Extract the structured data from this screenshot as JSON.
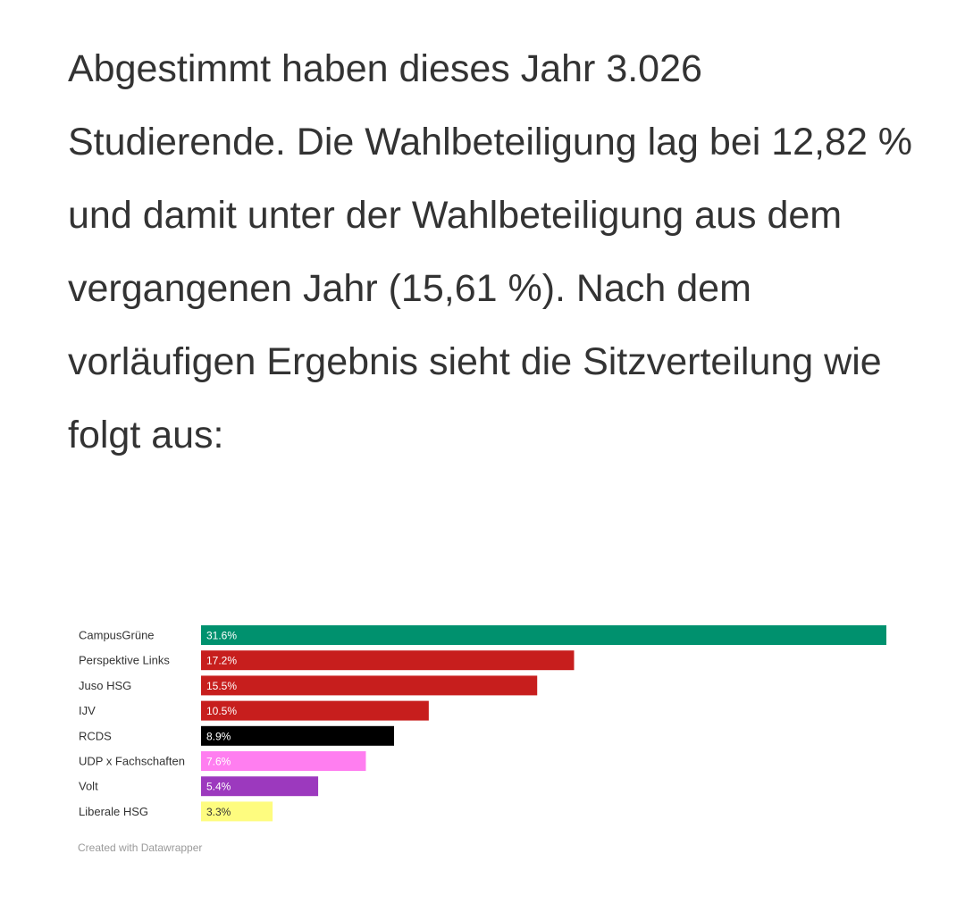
{
  "article": {
    "paragraph": "Abgestimmt haben dieses Jahr 3.026 Studierende. Die Wahlbeteiligung lag bei 12,82 % und damit unter der Wahlbeteiligung aus dem vergangenen Jahr (15,61 %). Nach dem vorläufigen Ergebnis sieht die Sitzverteilung wie folgt aus:"
  },
  "chart_data": {
    "type": "bar",
    "orientation": "horizontal",
    "title": "",
    "xlabel": "",
    "ylabel": "",
    "xlim": [
      0,
      31.6
    ],
    "grid": false,
    "legend": "none",
    "categories": [
      "CampusGrüne",
      "Perspektive Links",
      "Juso HSG",
      "IJV",
      "RCDS",
      "UDP x Fachschaften",
      "Volt",
      "Liberale HSG"
    ],
    "values": [
      31.6,
      17.2,
      15.5,
      10.5,
      8.9,
      7.6,
      5.4,
      3.3
    ],
    "value_labels": [
      "31.6%",
      "17.2%",
      "15.5%",
      "10.5%",
      "8.9%",
      "7.6%",
      "5.4%",
      "3.3%"
    ],
    "colors": [
      "#00916e",
      "#c71e1d",
      "#c71e1d",
      "#c71e1d",
      "#000000",
      "#ff7ef0",
      "#9c39be",
      "#fefc7f"
    ],
    "label_colors": [
      "#ffffff",
      "#ffffff",
      "#ffffff",
      "#ffffff",
      "#ffffff",
      "#ffffff",
      "#ffffff",
      "#333333"
    ]
  },
  "credit": "Created with Datawrapper"
}
